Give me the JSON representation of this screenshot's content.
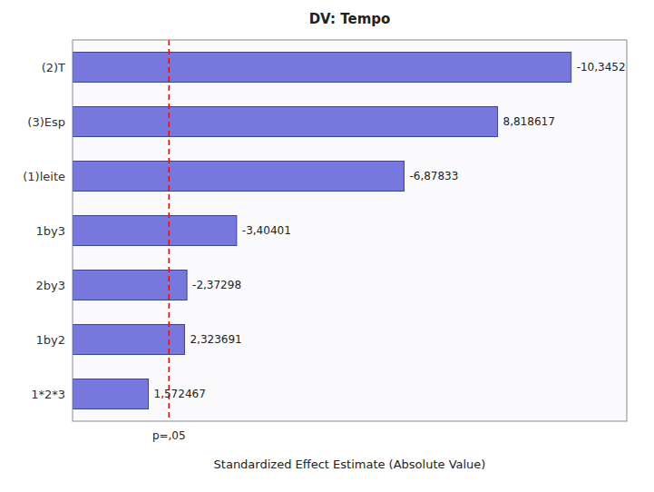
{
  "chart_data": {
    "type": "bar",
    "orientation": "horizontal",
    "title": "DV: Tempo",
    "x_label": "Standardized Effect Estimate (Absolute Value)",
    "categories": [
      "(2)T",
      "(3)Esp",
      "(1)leite",
      "1by3",
      "2by3",
      "1by2",
      "1*2*3"
    ],
    "values": [
      10.3452,
      8.818617,
      6.87833,
      3.40401,
      2.37298,
      2.323691,
      1.572467
    ],
    "value_labels": [
      "-10,3452",
      "8,818617",
      "-6,87833",
      "-3,40401",
      "-2,37298",
      "2,323691",
      "1,572467"
    ],
    "data_labels": true,
    "color": "#7777dd",
    "xlim": [
      0,
      11.5
    ],
    "tick_labels": "y",
    "grid": false,
    "annotations": [
      {
        "value": 2.0,
        "label": "p=,05",
        "color": "red",
        "line_style": "dashed"
      }
    ]
  }
}
